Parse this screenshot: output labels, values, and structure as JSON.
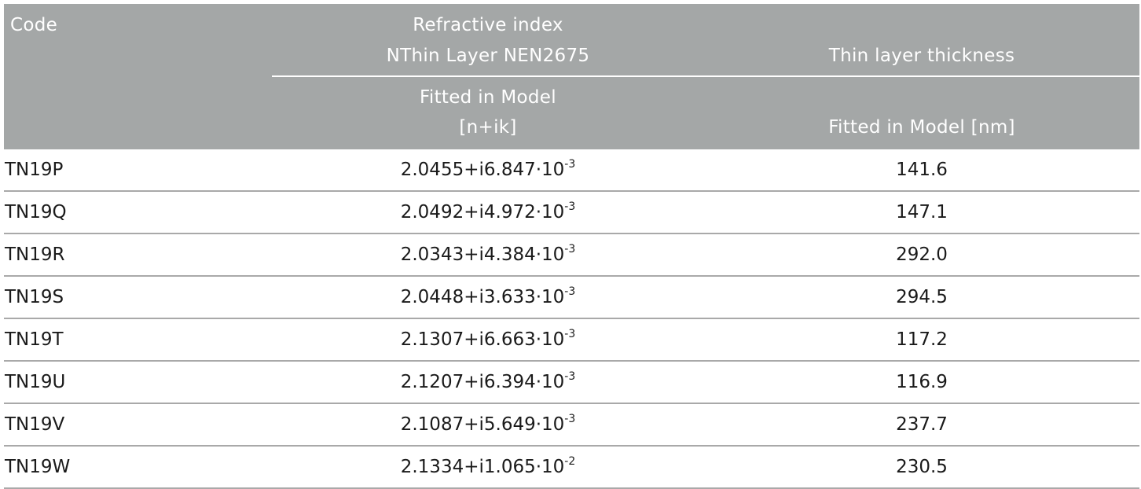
{
  "header": {
    "code": "Code",
    "refractive_index_title": "Refractive index",
    "refractive_index_subtitle": "NThin Layer NEN2675",
    "thin_layer_title": "Thin layer thickness",
    "refractive_index_fitted": "Fitted in Model",
    "refractive_index_unit": "[n+ik]",
    "thin_layer_fitted": "Fitted in Model [nm]"
  },
  "rows": [
    {
      "code": "TN19P",
      "ri_base": "2.0455+i6.847·10",
      "ri_exp": "-3",
      "thickness": "141.6"
    },
    {
      "code": "TN19Q",
      "ri_base": "2.0492+i4.972·10",
      "ri_exp": "-3",
      "thickness": "147.1"
    },
    {
      "code": "TN19R",
      "ri_base": "2.0343+i4.384·10",
      "ri_exp": "-3",
      "thickness": "292.0"
    },
    {
      "code": "TN19S",
      "ri_base": "2.0448+i3.633·10",
      "ri_exp": "-3",
      "thickness": "294.5"
    },
    {
      "code": "TN19T",
      "ri_base": "2.1307+i6.663·10",
      "ri_exp": "-3",
      "thickness": "117.2"
    },
    {
      "code": "TN19U",
      "ri_base": "2.1207+i6.394·10",
      "ri_exp": "-3",
      "thickness": "116.9"
    },
    {
      "code": "TN19V",
      "ri_base": "2.1087+i5.649·10",
      "ri_exp": "-3",
      "thickness": "237.7"
    },
    {
      "code": "TN19W",
      "ri_base": "2.1334+i1.065·10",
      "ri_exp": "-2",
      "thickness": "230.5"
    }
  ]
}
